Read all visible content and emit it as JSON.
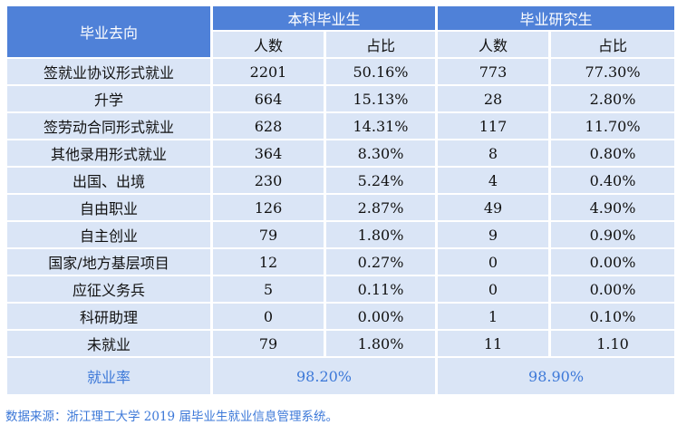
{
  "header": {
    "col_dest": "毕业去向",
    "group_undergrad": "本科毕业生",
    "group_grad": "毕业研究生",
    "count_label": "人数",
    "ratio_label": "占比"
  },
  "rows": [
    {
      "category": "签就业协议形式就业",
      "ug_count": "2201",
      "ug_ratio": "50.16%",
      "g_count": "773",
      "g_ratio": "77.30%"
    },
    {
      "category": "升学",
      "ug_count": "664",
      "ug_ratio": "15.13%",
      "g_count": "28",
      "g_ratio": "2.80%"
    },
    {
      "category": "签劳动合同形式就业",
      "ug_count": "628",
      "ug_ratio": "14.31%",
      "g_count": "117",
      "g_ratio": "11.70%"
    },
    {
      "category": "其他录用形式就业",
      "ug_count": "364",
      "ug_ratio": "8.30%",
      "g_count": "8",
      "g_ratio": "0.80%"
    },
    {
      "category": "出国、出境",
      "ug_count": "230",
      "ug_ratio": "5.24%",
      "g_count": "4",
      "g_ratio": "0.40%"
    },
    {
      "category": "自由职业",
      "ug_count": "126",
      "ug_ratio": "2.87%",
      "g_count": "49",
      "g_ratio": "4.90%"
    },
    {
      "category": "自主创业",
      "ug_count": "79",
      "ug_ratio": "1.80%",
      "g_count": "9",
      "g_ratio": "0.90%"
    },
    {
      "category": "国家/地方基层项目",
      "ug_count": "12",
      "ug_ratio": "0.27%",
      "g_count": "0",
      "g_ratio": "0.00%"
    },
    {
      "category": "应征义务兵",
      "ug_count": "5",
      "ug_ratio": "0.11%",
      "g_count": "0",
      "g_ratio": "0.00%"
    },
    {
      "category": "科研助理",
      "ug_count": "0",
      "ug_ratio": "0.00%",
      "g_count": "1",
      "g_ratio": "0.10%"
    },
    {
      "category": "未就业",
      "ug_count": "79",
      "ug_ratio": "1.80%",
      "g_count": "11",
      "g_ratio": "1.10"
    }
  ],
  "footer": {
    "label": "就业率",
    "ug_rate": "98.20%",
    "g_rate": "98.90%"
  },
  "source_note": "数据来源：浙江理工大学 2019 届毕业生就业信息管理系统。",
  "colors": {
    "header_bg": "#4f81d8",
    "cell_bg": "#dae5f6",
    "accent_text": "#3c78d8"
  }
}
